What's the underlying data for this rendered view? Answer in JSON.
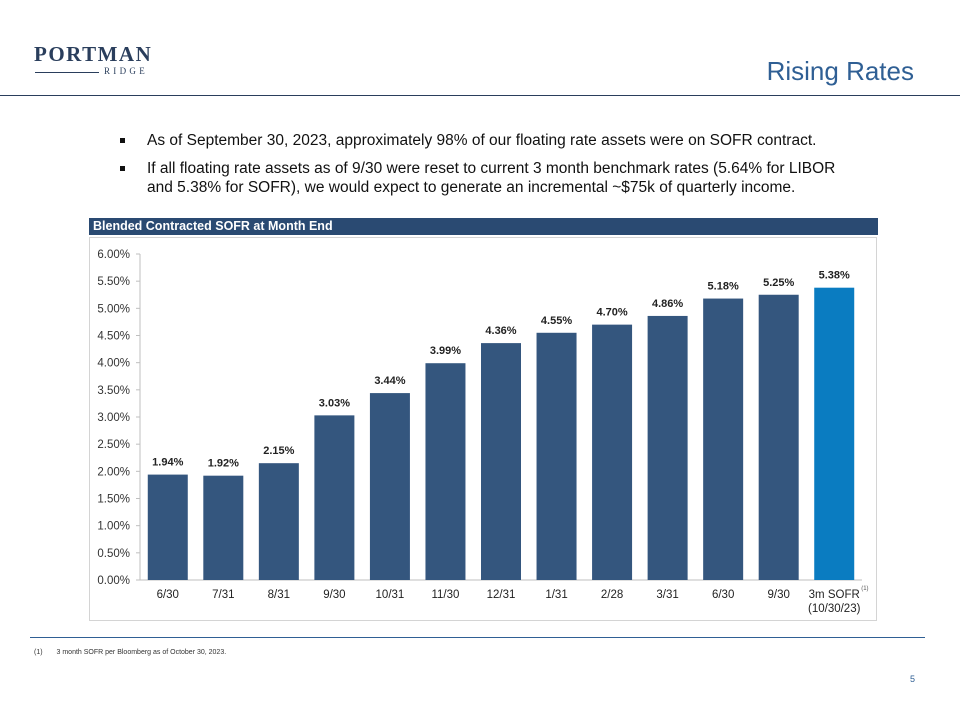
{
  "logo": {
    "main": "PORTMAN",
    "sub": "RIDGE"
  },
  "title": "Rising Rates",
  "bullets": [
    "As of September 30, 2023, approximately 98% of our floating rate assets were on SOFR contract.",
    "If all floating rate assets as of 9/30 were reset to current 3 month benchmark rates (5.64% for LIBOR and 5.38% for SOFR), we would expect to generate an incremental ~$75k of quarterly income."
  ],
  "chart_header": "Blended Contracted SOFR at Month End",
  "chart_data": {
    "type": "bar",
    "categories": [
      "6/30",
      "7/31",
      "8/31",
      "9/30",
      "10/31",
      "11/30",
      "12/31",
      "1/31",
      "2/28",
      "3/31",
      "6/30",
      "9/30",
      "3m SOFR\n(10/30/23)"
    ],
    "values": [
      1.94,
      1.92,
      2.15,
      3.03,
      3.44,
      3.99,
      4.36,
      4.55,
      4.7,
      4.86,
      5.18,
      5.25,
      5.38
    ],
    "value_labels": [
      "1.94%",
      "1.92%",
      "2.15%",
      "3.03%",
      "3.44%",
      "3.99%",
      "4.36%",
      "4.55%",
      "4.70%",
      "4.86%",
      "5.18%",
      "5.25%",
      "5.38%"
    ],
    "y_ticks": [
      "0.00%",
      "0.50%",
      "1.00%",
      "1.50%",
      "2.00%",
      "2.50%",
      "3.00%",
      "3.50%",
      "4.00%",
      "4.50%",
      "5.00%",
      "5.50%",
      "6.00%"
    ],
    "ylim": [
      0,
      6
    ],
    "last_category_superscript": "(1)",
    "colors": {
      "bar": "#34567e",
      "highlight_bar": "#0a7cc1",
      "axis": "#bfbfbf"
    },
    "grid": false,
    "title": "Blended Contracted SOFR at Month End",
    "xlabel": "",
    "ylabel": ""
  },
  "footnote": {
    "num": "(1)",
    "text": "3 month SOFR per Bloomberg as of October 30, 2023."
  },
  "page_number": "5"
}
